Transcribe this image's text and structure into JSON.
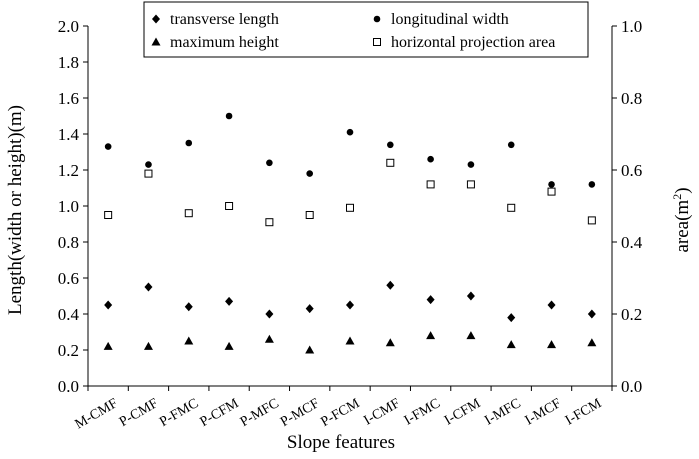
{
  "chart_data": {
    "type": "scatter",
    "title": "",
    "xlabel": "Slope features",
    "ylabel_left": "Length(width or height)(m)",
    "ylabel_right_base": "area(m",
    "ylabel_right_sup": "2",
    "ylabel_right_close": ")",
    "ylim_left": [
      0,
      2.0
    ],
    "ylim_right": [
      0,
      1.0
    ],
    "yticks_left": [
      "0.0",
      "0.2",
      "0.4",
      "0.6",
      "0.8",
      "1.0",
      "1.2",
      "1.4",
      "1.6",
      "1.8",
      "2.0"
    ],
    "yticks_right": [
      "0.0",
      "0.2",
      "0.4",
      "0.6",
      "0.8",
      "1.0"
    ],
    "grid": false,
    "legend_position": "top",
    "categories": [
      "M-CMF",
      "P-CMF",
      "P-FMC",
      "P-CFM",
      "P-MFC",
      "P-MCF",
      "P-FCM",
      "I-CMF",
      "I-FMC",
      "I-CFM",
      "I-MFC",
      "I-MCF",
      "I-FCM"
    ],
    "series": [
      {
        "name": "transverse length",
        "marker": "diamond",
        "axis": "left",
        "values": [
          0.45,
          0.55,
          0.44,
          0.47,
          0.4,
          0.43,
          0.45,
          0.56,
          0.48,
          0.5,
          0.38,
          0.45,
          0.4
        ]
      },
      {
        "name": "longitudinal width",
        "marker": "circle",
        "axis": "left",
        "values": [
          1.33,
          1.23,
          1.35,
          1.5,
          1.24,
          1.18,
          1.41,
          1.34,
          1.26,
          1.23,
          1.34,
          1.12,
          1.12
        ]
      },
      {
        "name": "maximum height",
        "marker": "triangle",
        "axis": "left",
        "values": [
          0.22,
          0.22,
          0.25,
          0.22,
          0.26,
          0.2,
          0.25,
          0.24,
          0.28,
          0.28,
          0.23,
          0.23,
          0.24
        ]
      },
      {
        "name": "horizontal projection area",
        "marker": "open-square",
        "axis": "right",
        "values": [
          0.475,
          0.59,
          0.48,
          0.5,
          0.455,
          0.475,
          0.495,
          0.62,
          0.56,
          0.56,
          0.495,
          0.54,
          0.46
        ]
      }
    ]
  }
}
